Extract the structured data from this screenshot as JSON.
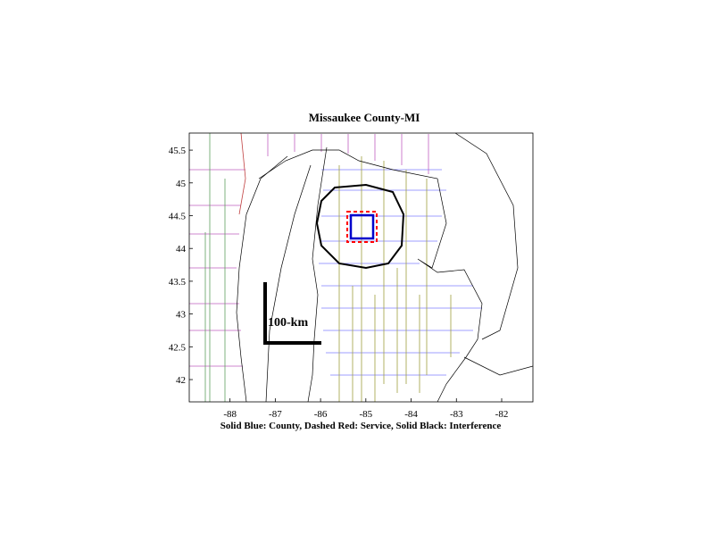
{
  "chart_data": {
    "type": "map",
    "title": "Missaukee County-MI",
    "xlabel": "Solid Blue: County, Dashed Red: Service, Solid Black: Interference",
    "annotation": "100-km",
    "xlim": [
      -88.9,
      -81.31
    ],
    "ylim": [
      41.66,
      45.76
    ],
    "xticks": [
      -88,
      -87,
      -86,
      -85,
      -84,
      -83,
      -82
    ],
    "yticks": [
      42,
      42.5,
      43,
      43.5,
      44,
      44.5,
      45,
      45.5
    ]
  }
}
